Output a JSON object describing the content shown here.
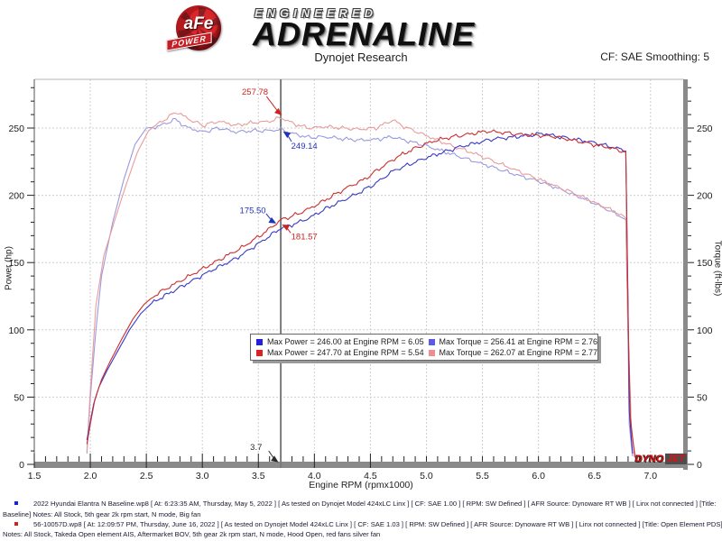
{
  "header": {
    "brand": {
      "afe": "aFe",
      "power": "POWER",
      "engineered": "ENGINEERED",
      "adrenaline": "ADRENALINE"
    },
    "title": "Dynojet Research",
    "correction": "CF: SAE Smoothing: 5"
  },
  "dynojet_logo": {
    "dyno": "DYNO",
    "jet": "JET"
  },
  "chart_data": {
    "type": "line",
    "title": "Dynojet Research",
    "xlabel": "Engine RPM (rpmx1000)",
    "ylabel_left": "Power (hp)",
    "ylabel_right": "Torque (ft-lbs)",
    "xlim": [
      1.5,
      7.3
    ],
    "ylim": [
      0,
      286
    ],
    "x_ticks": [
      1.5,
      2.0,
      2.5,
      3.0,
      3.5,
      4.0,
      4.5,
      5.0,
      5.5,
      6.0,
      6.5,
      7.0
    ],
    "y_ticks": [
      0,
      50,
      100,
      150,
      200,
      250
    ],
    "grid": "dashed",
    "cursor": {
      "rpm": 3.7
    },
    "series": [
      {
        "name": "baseline-torque",
        "axis": "torque",
        "color": "#9a9ade",
        "max_label": "Max Torque = 256.41 at Engine RPM = 2.76",
        "points": [
          [
            1.97,
            8
          ],
          [
            2.0,
            50
          ],
          [
            2.05,
            100
          ],
          [
            2.1,
            140
          ],
          [
            2.2,
            180
          ],
          [
            2.3,
            212
          ],
          [
            2.4,
            238
          ],
          [
            2.5,
            250
          ],
          [
            2.6,
            251
          ],
          [
            2.76,
            256.4
          ],
          [
            2.85,
            251
          ],
          [
            3.0,
            247
          ],
          [
            3.15,
            250
          ],
          [
            3.3,
            247
          ],
          [
            3.45,
            248
          ],
          [
            3.6,
            248
          ],
          [
            3.7,
            249.1
          ],
          [
            3.8,
            246
          ],
          [
            3.95,
            243
          ],
          [
            4.1,
            243.5
          ],
          [
            4.25,
            242
          ],
          [
            4.4,
            241
          ],
          [
            4.55,
            241.5
          ],
          [
            4.7,
            243.5
          ],
          [
            4.8,
            241
          ],
          [
            4.95,
            238
          ],
          [
            5.1,
            234
          ],
          [
            5.25,
            230
          ],
          [
            5.4,
            226
          ],
          [
            5.55,
            222
          ],
          [
            5.7,
            218
          ],
          [
            5.85,
            214
          ],
          [
            6.0,
            210.5
          ],
          [
            6.15,
            206
          ],
          [
            6.3,
            201
          ],
          [
            6.45,
            196
          ],
          [
            6.6,
            190
          ],
          [
            6.7,
            186
          ],
          [
            6.78,
            182
          ],
          [
            6.8,
            95
          ],
          [
            6.81,
            30
          ],
          [
            6.84,
            6
          ]
        ]
      },
      {
        "name": "test-torque",
        "axis": "torque",
        "color": "#e89c9c",
        "max_label": "Max Torque = 262.07 at Engine RPM = 2.77",
        "points": [
          [
            1.97,
            10
          ],
          [
            2.0,
            55
          ],
          [
            2.05,
            118
          ],
          [
            2.12,
            155
          ],
          [
            2.22,
            182
          ],
          [
            2.32,
            208
          ],
          [
            2.42,
            232
          ],
          [
            2.52,
            248
          ],
          [
            2.62,
            254
          ],
          [
            2.77,
            262.1
          ],
          [
            2.87,
            257
          ],
          [
            3.0,
            252
          ],
          [
            3.15,
            255
          ],
          [
            3.3,
            252
          ],
          [
            3.45,
            254
          ],
          [
            3.6,
            255
          ],
          [
            3.7,
            257.8
          ],
          [
            3.82,
            253
          ],
          [
            3.95,
            250
          ],
          [
            4.1,
            251
          ],
          [
            4.25,
            250
          ],
          [
            4.4,
            249
          ],
          [
            4.55,
            250
          ],
          [
            4.7,
            256
          ],
          [
            4.8,
            251
          ],
          [
            4.95,
            246
          ],
          [
            5.1,
            241
          ],
          [
            5.25,
            236
          ],
          [
            5.4,
            232
          ],
          [
            5.55,
            227
          ],
          [
            5.7,
            222
          ],
          [
            5.85,
            217
          ],
          [
            6.0,
            212
          ],
          [
            6.15,
            207
          ],
          [
            6.3,
            202
          ],
          [
            6.45,
            196.5
          ],
          [
            6.6,
            191
          ],
          [
            6.7,
            187
          ],
          [
            6.78,
            183
          ],
          [
            6.8,
            100
          ],
          [
            6.83,
            25
          ],
          [
            6.87,
            4
          ]
        ]
      },
      {
        "name": "baseline-power",
        "axis": "power",
        "color": "#3a3ac8",
        "max_label": "Max Power = 246.00 at Engine RPM = 6.05",
        "points": [
          [
            1.97,
            18
          ],
          [
            2.0,
            32
          ],
          [
            2.03,
            45
          ],
          [
            2.08,
            58
          ],
          [
            2.15,
            70
          ],
          [
            2.25,
            85
          ],
          [
            2.35,
            100
          ],
          [
            2.45,
            112
          ],
          [
            2.55,
            120
          ],
          [
            2.7,
            127
          ],
          [
            2.9,
            136
          ],
          [
            3.1,
            145
          ],
          [
            3.3,
            153
          ],
          [
            3.5,
            164
          ],
          [
            3.7,
            175.5
          ],
          [
            3.8,
            178
          ],
          [
            3.95,
            183
          ],
          [
            4.1,
            190
          ],
          [
            4.25,
            196
          ],
          [
            4.4,
            202
          ],
          [
            4.55,
            209
          ],
          [
            4.7,
            218
          ],
          [
            4.85,
            223
          ],
          [
            5.0,
            228
          ],
          [
            5.15,
            232
          ],
          [
            5.3,
            236
          ],
          [
            5.45,
            239
          ],
          [
            5.6,
            242
          ],
          [
            5.75,
            243
          ],
          [
            5.9,
            244.5
          ],
          [
            6.05,
            246
          ],
          [
            6.15,
            244
          ],
          [
            6.3,
            242
          ],
          [
            6.45,
            240
          ],
          [
            6.6,
            237
          ],
          [
            6.7,
            235
          ],
          [
            6.78,
            233
          ],
          [
            6.8,
            120
          ],
          [
            6.81,
            40
          ],
          [
            6.84,
            8
          ]
        ]
      },
      {
        "name": "test-power",
        "axis": "power",
        "color": "#cc2e2e",
        "max_label": "Max Power = 247.70 at Engine RPM = 5.54",
        "points": [
          [
            1.97,
            15
          ],
          [
            2.0,
            30
          ],
          [
            2.04,
            48
          ],
          [
            2.1,
            63
          ],
          [
            2.18,
            77
          ],
          [
            2.28,
            93
          ],
          [
            2.38,
            108
          ],
          [
            2.48,
            119
          ],
          [
            2.58,
            126
          ],
          [
            2.75,
            134
          ],
          [
            2.95,
            143
          ],
          [
            3.15,
            152
          ],
          [
            3.35,
            161
          ],
          [
            3.55,
            172
          ],
          [
            3.7,
            181.6
          ],
          [
            3.85,
            186
          ],
          [
            4.0,
            192
          ],
          [
            4.15,
            199
          ],
          [
            4.3,
            206
          ],
          [
            4.45,
            212
          ],
          [
            4.6,
            221
          ],
          [
            4.75,
            229
          ],
          [
            4.9,
            235
          ],
          [
            5.05,
            240
          ],
          [
            5.2,
            243
          ],
          [
            5.35,
            245
          ],
          [
            5.54,
            247.7
          ],
          [
            5.7,
            246.5
          ],
          [
            5.85,
            245
          ],
          [
            6.0,
            244.5
          ],
          [
            6.15,
            243.5
          ],
          [
            6.3,
            241
          ],
          [
            6.45,
            238.5
          ],
          [
            6.6,
            236
          ],
          [
            6.7,
            234
          ],
          [
            6.78,
            232
          ],
          [
            6.8,
            110
          ],
          [
            6.82,
            35
          ],
          [
            6.86,
            5
          ]
        ]
      }
    ],
    "legend": {
      "rows": [
        [
          {
            "color": "#2020dd",
            "text": "Max Power = 246.00 at Engine RPM = 6.05"
          },
          {
            "color": "#5a5ae6",
            "text": "Max Torque = 256.41 at Engine RPM = 2.76"
          }
        ],
        [
          {
            "color": "#dd2020",
            "text": "Max Power = 247.70 at Engine RPM = 5.54"
          },
          {
            "color": "#ee8f8f",
            "text": "Max Torque = 262.07 at Engine RPM = 2.77"
          }
        ]
      ]
    },
    "annotations": [
      {
        "text": "257.78",
        "color": "#cc2222",
        "text_rpm": 3.47,
        "text_val": 277,
        "tip_rpm": 3.71,
        "tip_val": 259.5
      },
      {
        "text": "249.14",
        "color": "#2233bb",
        "text_rpm": 3.91,
        "text_val": 237,
        "tip_rpm": 3.72,
        "tip_val": 247.5
      },
      {
        "text": "175.50",
        "color": "#2233bb",
        "text_rpm": 3.45,
        "text_val": 189,
        "tip_rpm": 3.66,
        "tip_val": 179
      },
      {
        "text": "181.57",
        "color": "#cc2222",
        "text_rpm": 3.91,
        "text_val": 169.5,
        "tip_rpm": 3.71,
        "tip_val": 178.3
      },
      {
        "text": "3.7",
        "color": "#2a2a2a",
        "text_rpm": 3.48,
        "text_val": 13,
        "tip_rpm": 3.68,
        "tip_val": 1.5
      }
    ]
  },
  "footer": {
    "runs": [
      {
        "marker_color": "#2222cc",
        "line1": "2022 Hyundai Elantra N Baseline.wp8 [ At: 6:23:35 AM, Thursday, May 5, 2022 ] [ As tested on Dynojet Model 424xLC Linx ] [ CF: SAE 1.00 ] [ RPM: SW Defined ] [ AFR Source: Dynoware RT WB ] [ Linx not connected ] [Title:",
        "line2": "Baseline]  Notes: All Stock, 5th gear 2k rpm start, N mode, Big fan"
      },
      {
        "marker_color": "#cc2222",
        "line1": "56-10057D.wp8 [ At: 12:09:57 PM, Thursday, June 16, 2022 ] [ As tested on Dynojet Model 424xLC Linx ] [ CF: SAE 1.03 ] [ RPM: SW Defined ] [ AFR Source: Dynoware RT WB ] [ Linx not connected ] [Title: Open Element PDS]",
        "line2": "Notes: All Stock, Takeda Open element AIS, Aftermarket BOV, 5th gear 2k rpm start, N mode, Hood Open, red fans silver fan"
      }
    ]
  }
}
